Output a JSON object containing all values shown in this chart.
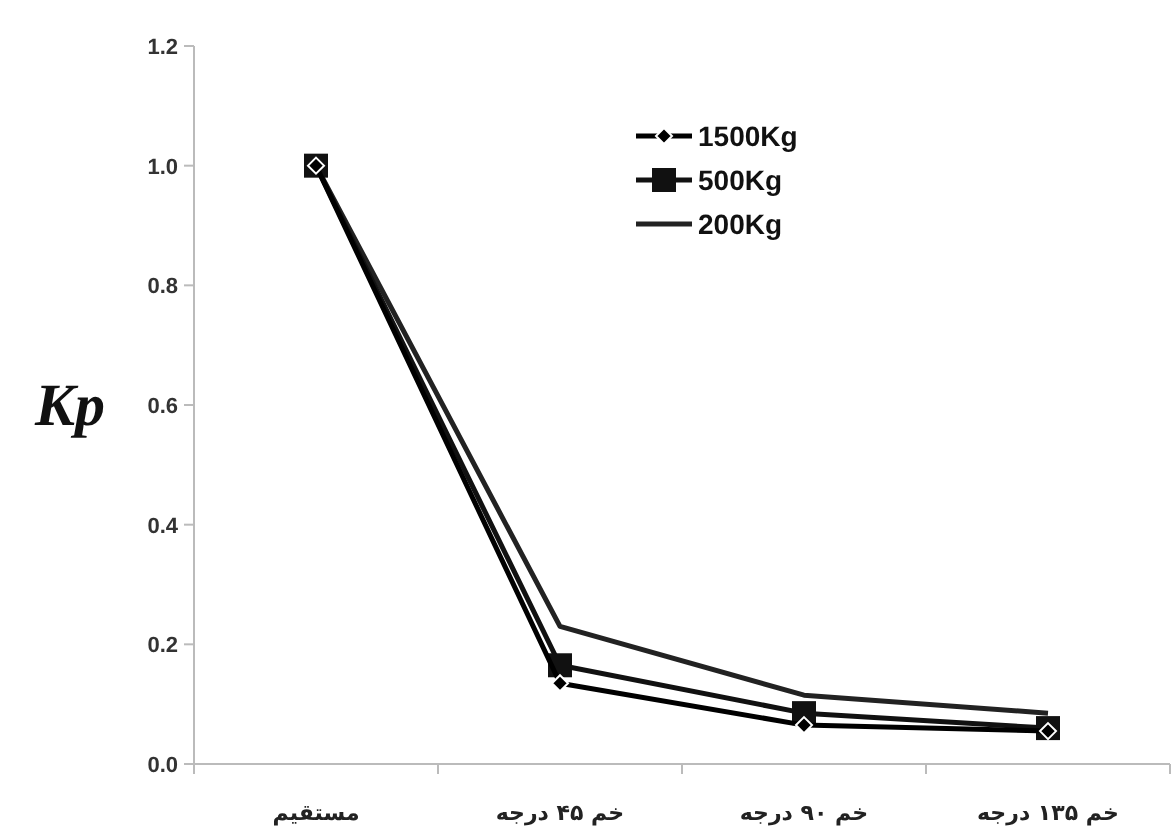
{
  "chart_data": {
    "type": "line",
    "ylabel": "Kp",
    "categories": [
      "مستقیم",
      "خم ۴۵ درجه",
      "خم ۹۰ درجه",
      "خم ۱۳۵ درجه"
    ],
    "series": [
      {
        "name": "1500Kg",
        "color": "#000000",
        "marker": "diamond",
        "values": [
          1.0,
          0.135,
          0.065,
          0.055
        ]
      },
      {
        "name": "500Kg",
        "color": "#111111",
        "marker": "square",
        "values": [
          1.0,
          0.165,
          0.085,
          0.06
        ]
      },
      {
        "name": "200Kg",
        "color": "#222222",
        "marker": "none",
        "values": [
          1.0,
          0.23,
          0.115,
          0.085
        ]
      }
    ],
    "ylim": [
      0,
      1.2
    ],
    "yticks": [
      {
        "value": 0,
        "label": "0.0"
      },
      {
        "value": 0.2,
        "label": "0.2"
      },
      {
        "value": 0.4,
        "label": "0.4"
      },
      {
        "value": 0.6,
        "label": "0.6"
      },
      {
        "value": 0.8,
        "label": "0.8"
      },
      {
        "value": 1,
        "label": "1.0"
      },
      {
        "value": 1.2,
        "label": "1.2"
      }
    ],
    "grid": false,
    "legend": "top right"
  }
}
